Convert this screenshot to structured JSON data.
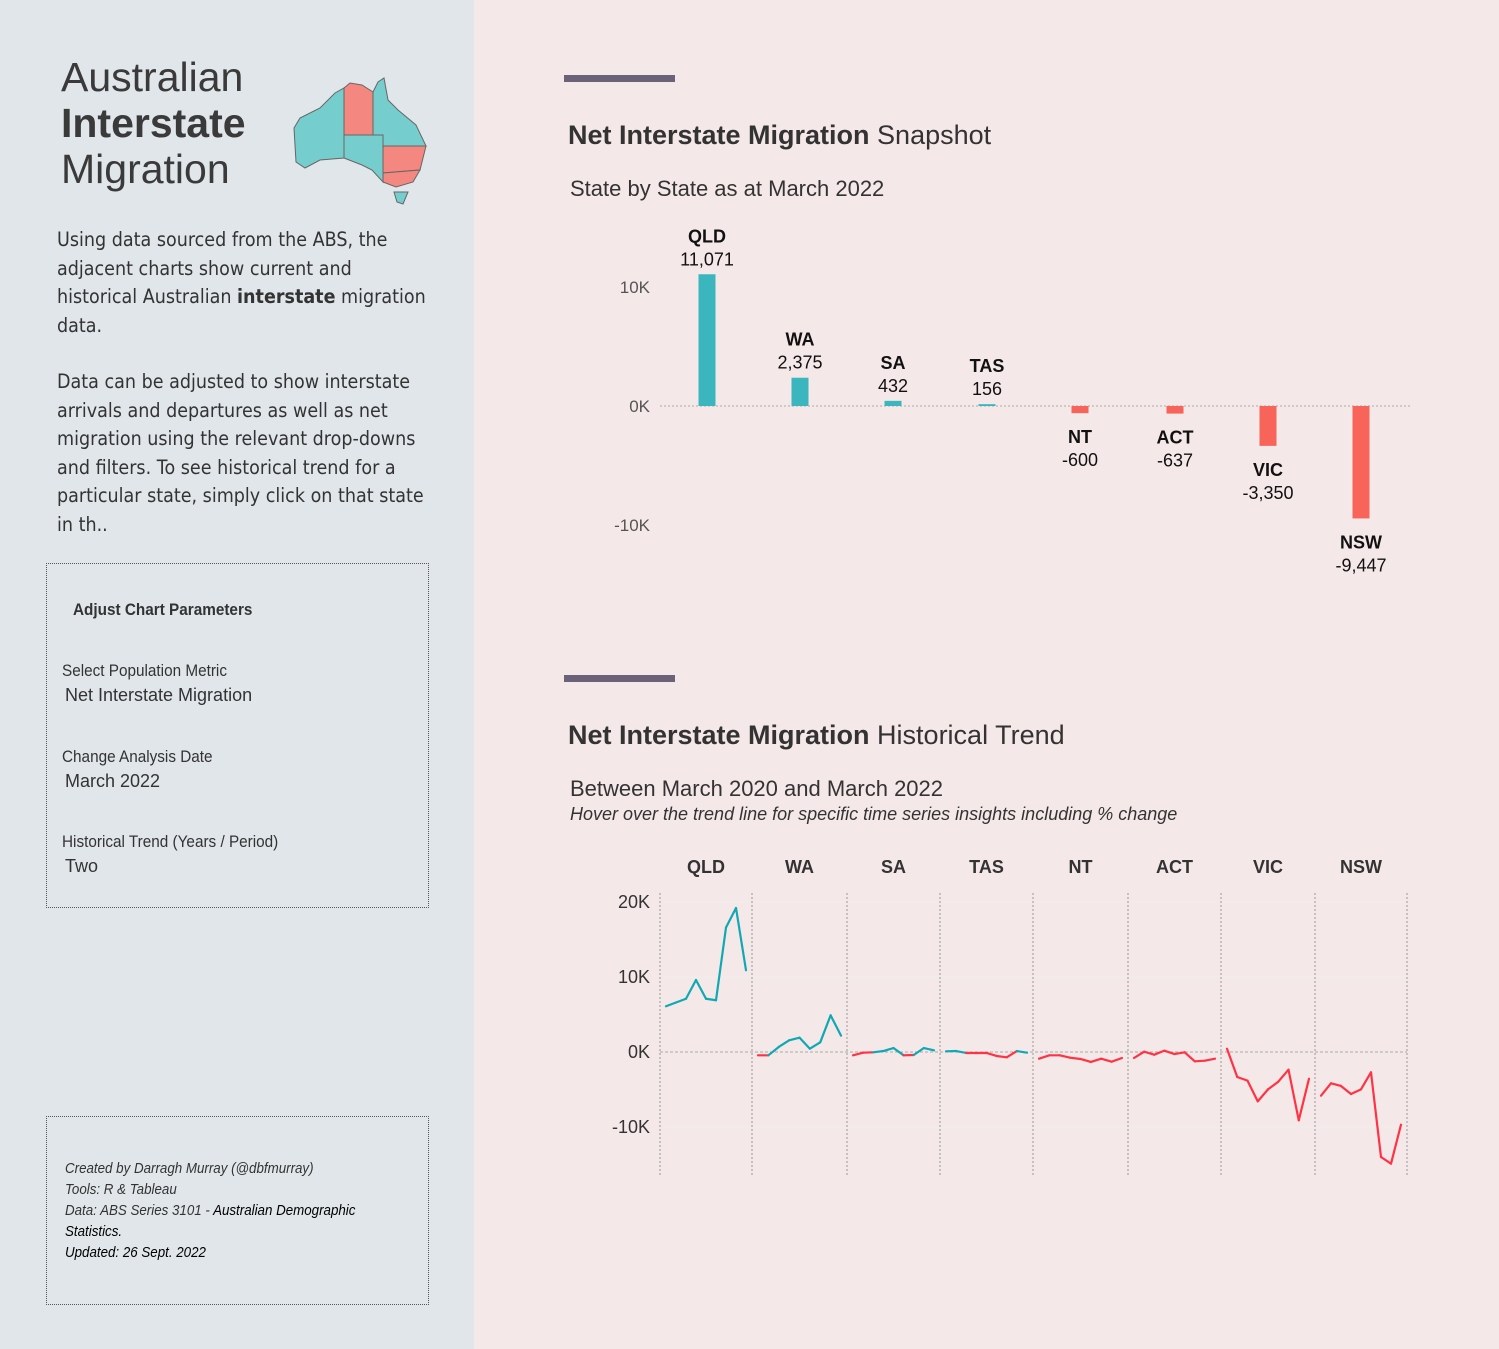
{
  "sidebar": {
    "title": [
      "Australian",
      "Interstate",
      "Migration"
    ],
    "intro1_a": "Using data sourced from the ABS, the adjacent charts show current and historical Australian ",
    "intro1_b": "interstate",
    "intro1_c": " migration data.",
    "intro2": "Data can be adjusted to show interstate arrivals and departures as well as net migration using the relevant drop-downs and filters. To see historical trend for a particular state, simply click on that state in th..",
    "params": {
      "heading": "Adjust Chart Parameters",
      "items": [
        {
          "label": "Select Population Metric",
          "value": "Net Interstate Migration"
        },
        {
          "label": "Change Analysis Date",
          "value": "March 2022"
        },
        {
          "label": "Historical Trend (Years / Period)",
          "value": "Two"
        }
      ]
    },
    "footer": {
      "line1": "Created by Darragh Murray (@dbfmurray)",
      "line2": "Tools: R & Tableau",
      "line3a": "Data: ABS Series 3101 - ",
      "line3b": "Australian Demographic Statistics.",
      "line4": "Updated: 26 Sept. 2022"
    },
    "map_colors": {
      "gain": "#76cdce",
      "loss": "#f4877f"
    }
  },
  "colors": {
    "positive": "#3bb6be",
    "negative": "#f8635a",
    "trend_positive": "#10a9b3",
    "trend_negative": "#ff3344"
  },
  "snapshot": {
    "title_bold": "Net Interstate Migration",
    "title_rest": " Snapshot",
    "subtitle": "State by State as at March 2022"
  },
  "trend": {
    "title_bold": "Net Interstate Migration",
    "title_rest": " Historical Trend",
    "subtitle": "Between March 2020 and March 2022",
    "note": "Hover over the trend line for specific time series insights including % change"
  },
  "chart_data": [
    {
      "type": "bar",
      "categories": [
        "QLD",
        "WA",
        "SA",
        "TAS",
        "NT",
        "ACT",
        "VIC",
        "NSW"
      ],
      "values": [
        11071,
        2375,
        432,
        156,
        -600,
        -637,
        -3350,
        -9447
      ],
      "data_labels": [
        "11,071",
        "2,375",
        "432",
        "156",
        "-600",
        "-637",
        "-3,350",
        "-9,447"
      ],
      "yticks": [
        {
          "v": 10000,
          "label": "10K"
        },
        {
          "v": 0,
          "label": "0K"
        },
        {
          "v": -10000,
          "label": "-10K"
        }
      ]
    },
    {
      "type": "line",
      "categories": [
        "QLD",
        "WA",
        "SA",
        "TAS",
        "NT",
        "ACT",
        "VIC",
        "NSW"
      ],
      "yticks": [
        {
          "v": 20000,
          "label": "20K"
        },
        {
          "v": 10000,
          "label": "10K"
        },
        {
          "v": 0,
          "label": "0K"
        },
        {
          "v": -10000,
          "label": "-10K"
        }
      ],
      "series": [
        [
          6100,
          6600,
          7100,
          9600,
          7100,
          6900,
          16600,
          19200,
          10900
        ],
        [
          -440,
          -440,
          670,
          1560,
          1910,
          440,
          1290,
          4890,
          2180
        ],
        [
          -440,
          -90,
          -40,
          130,
          530,
          -440,
          -400,
          530,
          220
        ],
        [
          90,
          130,
          -130,
          -130,
          -130,
          -530,
          -710,
          130,
          -90
        ],
        [
          -890,
          -440,
          -440,
          -760,
          -930,
          -1330,
          -890,
          -1290,
          -800
        ],
        [
          -800,
          40,
          -360,
          180,
          -270,
          -40,
          -1240,
          -1160,
          -890
        ],
        [
          440,
          -3330,
          -3820,
          -6580,
          -4980,
          -3960,
          -2360,
          -9110,
          -3560
        ],
        [
          -5820,
          -4180,
          -4530,
          -5600,
          -4980,
          -2710,
          -14000,
          -14890,
          -9690
        ]
      ]
    }
  ]
}
